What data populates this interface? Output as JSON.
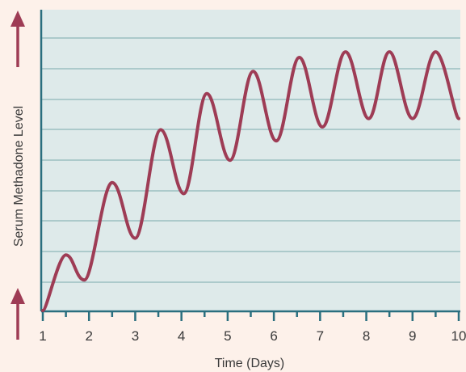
{
  "chart_data": {
    "type": "line",
    "title": "",
    "xlabel": "Time (Days)",
    "ylabel": "Serum Methadone Level",
    "xlim": [
      1,
      10
    ],
    "x_ticks": [
      "1",
      "2",
      "3",
      "4",
      "5",
      "6",
      "7",
      "8",
      "9",
      "10"
    ],
    "y_tick_labels_shown": false,
    "grid": "horizontal",
    "legend": "none",
    "series": [
      {
        "x": [
          1.0,
          1.5,
          1.9,
          2.5,
          3.0,
          3.55,
          4.05,
          4.55,
          5.05,
          5.55,
          6.05,
          6.55,
          7.05,
          7.55,
          8.05,
          8.5,
          9.0,
          9.5,
          10.0
        ],
        "y": [
          0.0,
          0.2,
          0.11,
          0.46,
          0.26,
          0.65,
          0.42,
          0.78,
          0.54,
          0.86,
          0.61,
          0.91,
          0.66,
          0.93,
          0.69,
          0.93,
          0.69,
          0.93,
          0.69
        ]
      }
    ],
    "colors": {
      "background": "#fdf1ea",
      "plot_area": "#deeaea",
      "axis": "#2a6f7f",
      "grid": "#8fb7b9",
      "line": "#9e3c55",
      "arrow": "#9e3c55"
    }
  }
}
